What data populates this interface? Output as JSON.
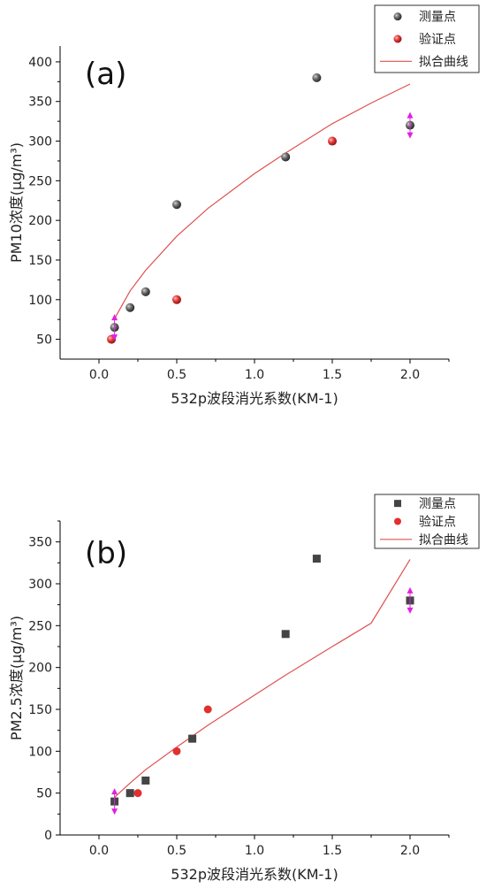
{
  "chart_data": [
    {
      "type": "scatter",
      "panel_label": "(a)",
      "xlabel": "532p波段消光系数(KM-1)",
      "ylabel": "PM10浓度(μg/m³)",
      "xlim": [
        -0.25,
        2.25
      ],
      "ylim": [
        25,
        420
      ],
      "xticks": [
        "0.0",
        "0.5",
        "1.0",
        "1.5",
        "2.0"
      ],
      "yticks": [
        "50",
        "100",
        "150",
        "200",
        "250",
        "300",
        "350",
        "400"
      ],
      "legend": {
        "position": "top-right",
        "entries": [
          "测量点",
          "验证点",
          "拟合曲线"
        ]
      },
      "marker": "sphere",
      "series": [
        {
          "name": "测量点",
          "color": "#4a4a4a",
          "x": [
            0.1,
            0.2,
            0.3,
            0.5,
            1.2,
            1.4,
            2.0
          ],
          "y": [
            65,
            90,
            110,
            220,
            280,
            380,
            320
          ]
        },
        {
          "name": "验证点",
          "color": "#e03030",
          "x": [
            0.08,
            0.5,
            1.5
          ],
          "y": [
            50,
            100,
            300
          ]
        }
      ],
      "fit": {
        "name": "拟合曲线",
        "color": "#e05050",
        "x": [
          0.1,
          0.2,
          0.3,
          0.5,
          0.7,
          1.0,
          1.2,
          1.5,
          1.75,
          2.0
        ],
        "y": [
          76,
          111,
          137,
          180,
          215,
          259,
          285,
          322,
          348,
          372
        ]
      },
      "error_markers": [
        {
          "x": 0.1,
          "y": 65
        },
        {
          "x": 2.0,
          "y": 320
        }
      ]
    },
    {
      "type": "scatter",
      "panel_label": "(b)",
      "xlabel": "532p波段消光系数(KM-1)",
      "ylabel": "PM2.5浓度(μg/m³)",
      "xlim": [
        -0.25,
        2.25
      ],
      "ylim": [
        0,
        375
      ],
      "xticks": [
        "0.0",
        "0.5",
        "1.0",
        "1.5",
        "2.0"
      ],
      "yticks": [
        "0",
        "50",
        "100",
        "150",
        "200",
        "250",
        "300",
        "350"
      ],
      "legend": {
        "position": "top-right",
        "entries": [
          "测量点",
          "验证点",
          "拟合曲线"
        ]
      },
      "series": [
        {
          "name": "测量点",
          "color": "#444444",
          "marker": "square",
          "x": [
            0.1,
            0.2,
            0.3,
            0.6,
            1.2,
            1.4,
            2.0
          ],
          "y": [
            40,
            50,
            65,
            115,
            240,
            330,
            280
          ]
        },
        {
          "name": "验证点",
          "color": "#e03030",
          "marker": "circle",
          "x": [
            0.25,
            0.5,
            0.7
          ],
          "y": [
            50,
            100,
            150
          ]
        }
      ],
      "fit": {
        "name": "拟合曲线",
        "color": "#e05050",
        "x": [
          0.1,
          0.2,
          0.3,
          0.5,
          0.7,
          1.0,
          1.2,
          1.5,
          1.75,
          2.0
        ],
        "y": [
          45,
          62,
          78,
          105,
          131,
          167,
          191,
          225,
          253,
          329
        ]
      },
      "error_markers": [
        {
          "x": 0.1,
          "y": 40
        },
        {
          "x": 2.0,
          "y": 280
        }
      ]
    }
  ]
}
